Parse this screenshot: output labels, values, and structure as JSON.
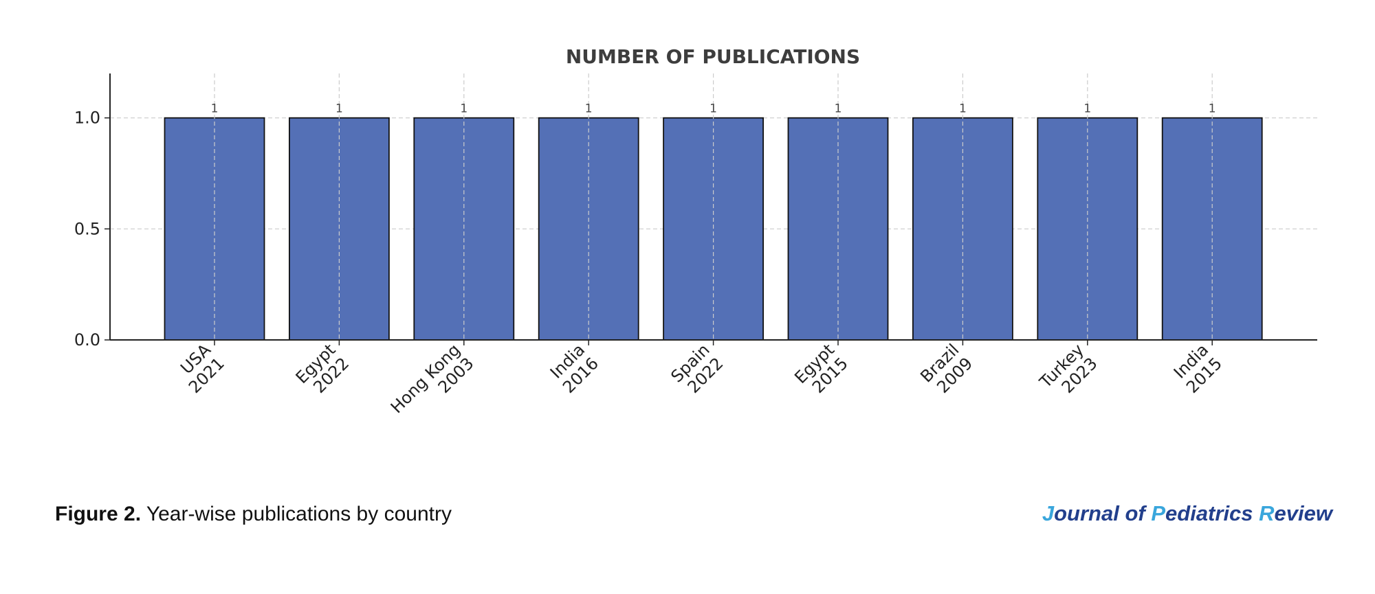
{
  "chart_data": {
    "type": "bar",
    "title": "NUMBER OF PUBLICATIONS",
    "categories": [
      [
        "USA",
        "2021"
      ],
      [
        "Egypt",
        "2022"
      ],
      [
        "Hong Kong",
        "2003"
      ],
      [
        "India",
        "2016"
      ],
      [
        "Spain",
        "2022"
      ],
      [
        "Egypt",
        "2015"
      ],
      [
        "Brazil",
        "2009"
      ],
      [
        "Turkey",
        "2023"
      ],
      [
        "India",
        "2015"
      ]
    ],
    "values": [
      1,
      1,
      1,
      1,
      1,
      1,
      1,
      1,
      1
    ],
    "data_labels": [
      "1",
      "1",
      "1",
      "1",
      "1",
      "1",
      "1",
      "1",
      "1"
    ],
    "ylim": [
      0,
      1.2
    ],
    "yticks": [
      0.0,
      0.5,
      1.0
    ],
    "ytick_labels": [
      "0.0",
      "0.5",
      "1.0"
    ],
    "xlabel": "",
    "ylabel": "",
    "grid": true,
    "colors": {
      "bar_fill": "#5470b6",
      "bar_edge": "#111111",
      "grid": "#cccccc",
      "axis": "#222222"
    }
  },
  "caption": {
    "label": "Figure 2.",
    "text": " Year-wise publications by country"
  },
  "journal": {
    "parts": [
      {
        "text": "J",
        "highlight": true
      },
      {
        "text": "ournal of ",
        "highlight": false
      },
      {
        "text": "P",
        "highlight": true
      },
      {
        "text": "ediatrics ",
        "highlight": false
      },
      {
        "text": "R",
        "highlight": true
      },
      {
        "text": "eview",
        "highlight": false
      }
    ]
  }
}
